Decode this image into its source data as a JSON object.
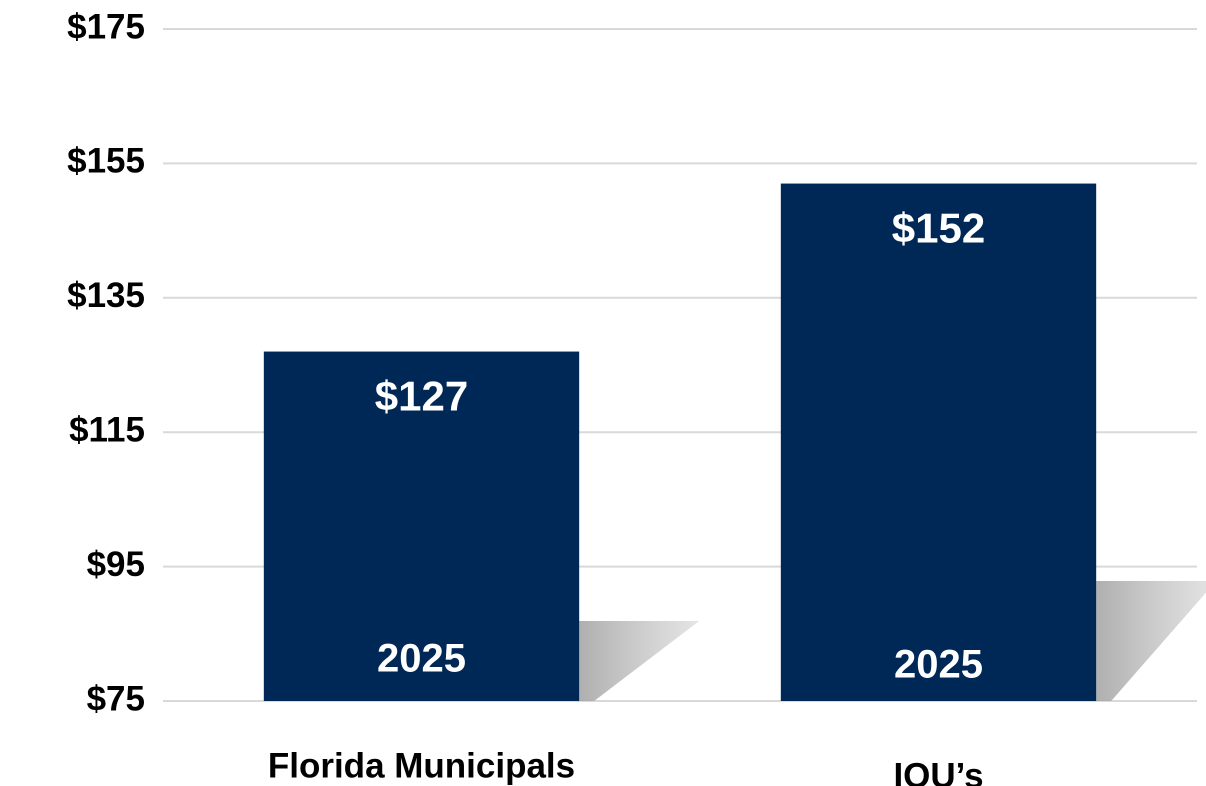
{
  "chart_data": {
    "type": "bar",
    "categories": [
      "Florida Municipals",
      "IOU’s"
    ],
    "values": [
      127,
      152
    ],
    "value_labels": [
      "$127",
      "$152"
    ],
    "inner_labels": [
      "2025",
      "2025"
    ],
    "color": "#002857",
    "ylim": [
      75,
      175
    ],
    "yticks": [
      {
        "value": 75,
        "label": "$75"
      },
      {
        "value": 95,
        "label": "$95"
      },
      {
        "value": 115,
        "label": "$115"
      },
      {
        "value": 135,
        "label": "$135"
      },
      {
        "value": 155,
        "label": "$155"
      },
      {
        "value": 175,
        "label": "$175"
      }
    ],
    "grid": true
  }
}
